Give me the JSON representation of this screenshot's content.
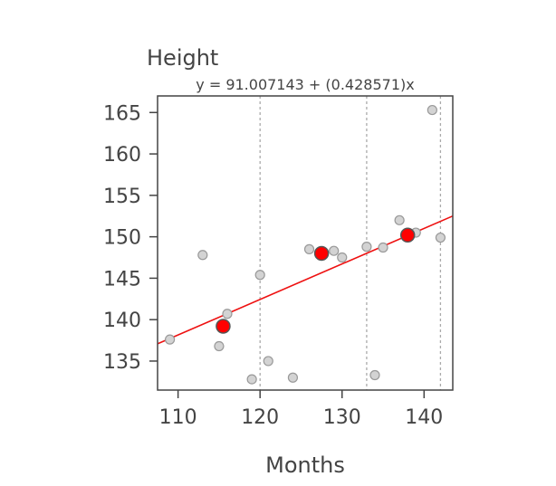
{
  "chart_data": {
    "type": "scatter",
    "title": "Height",
    "subtitle": "y = 91.007143 + (0.428571)x",
    "xlabel": "Months",
    "ylabel": "",
    "xlim": [
      107.5,
      143.5
    ],
    "ylim": [
      131.5,
      167
    ],
    "x_ticks": [
      110,
      120,
      130,
      140
    ],
    "y_ticks": [
      135,
      140,
      145,
      150,
      155,
      160,
      165
    ],
    "x_tick_labels": [
      "110",
      "120",
      "130",
      "140"
    ],
    "y_tick_labels": [
      "135",
      "140",
      "145",
      "150",
      "155",
      "160",
      "165"
    ],
    "grid": false,
    "vlines": [
      120,
      133,
      142
    ],
    "regression": {
      "intercept": 91.007143,
      "slope": 0.428571
    },
    "points": [
      {
        "x": 109,
        "y": 137.6
      },
      {
        "x": 113,
        "y": 147.8
      },
      {
        "x": 115,
        "y": 136.8
      },
      {
        "x": 116,
        "y": 140.7
      },
      {
        "x": 119,
        "y": 132.8
      },
      {
        "x": 120,
        "y": 145.4
      },
      {
        "x": 121,
        "y": 135.0
      },
      {
        "x": 124,
        "y": 133.0
      },
      {
        "x": 126,
        "y": 148.5
      },
      {
        "x": 129,
        "y": 148.3
      },
      {
        "x": 130,
        "y": 147.5
      },
      {
        "x": 133,
        "y": 148.8
      },
      {
        "x": 134,
        "y": 133.3
      },
      {
        "x": 135,
        "y": 148.7
      },
      {
        "x": 137,
        "y": 152.0
      },
      {
        "x": 139,
        "y": 150.5
      },
      {
        "x": 141,
        "y": 165.3
      },
      {
        "x": 142,
        "y": 149.9
      }
    ],
    "means": [
      {
        "x": 115.5,
        "y": 139.2
      },
      {
        "x": 127.5,
        "y": 148.0
      },
      {
        "x": 138.0,
        "y": 150.2
      }
    ],
    "colors": {
      "point_fill": "#d3d3d3",
      "point_stroke": "#999999",
      "mean_fill": "#ff0000",
      "mean_stroke": "#555555",
      "line": "#ee1111",
      "vline": "#aaaaaa",
      "axis": "#444444"
    }
  }
}
